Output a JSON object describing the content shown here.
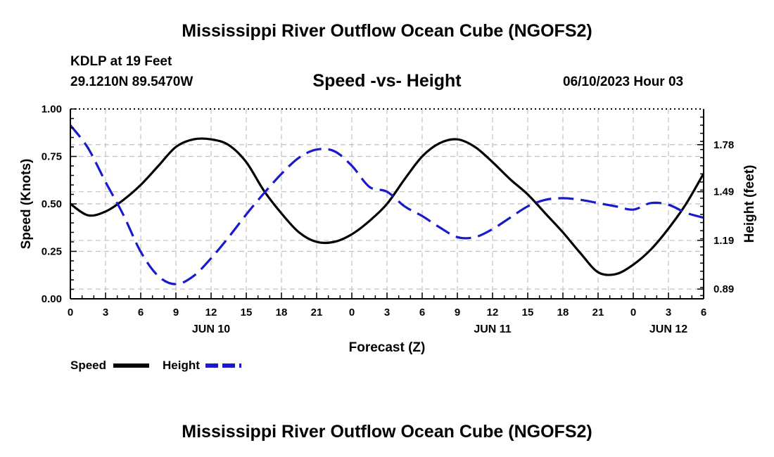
{
  "header": {
    "title": "Mississippi River Outflow Ocean Cube (NGOFS2)",
    "footer_title": "Mississippi River Outflow Ocean Cube (NGOFS2)",
    "station": "KDLP at 19 Feet",
    "coords": "29.1210N  89.5470W",
    "subtitle": "Speed -vs- Height",
    "run": "06/10/2023 Hour 03"
  },
  "colors": {
    "speed": "#000000",
    "height": "#1a1acc",
    "grid": "#c0c0c0"
  },
  "legend": {
    "speed_label": "Speed",
    "height_label": "Height"
  },
  "chart_data": {
    "type": "line",
    "title": "Speed -vs- Height",
    "xlabel": "Forecast (Z)",
    "ylabel": "Speed (Knots)",
    "y2label": "Height (feet)",
    "xlim": [
      0,
      54
    ],
    "ylim": [
      0,
      1.0
    ],
    "y2lim": [
      0.83,
      2.0
    ],
    "x_ticks": [
      0,
      3,
      6,
      9,
      12,
      15,
      18,
      21,
      24,
      27,
      30,
      33,
      36,
      39,
      42,
      45,
      48,
      51,
      54
    ],
    "x_tick_labels": [
      "0",
      "3",
      "6",
      "9",
      "12",
      "15",
      "18",
      "21",
      "0",
      "3",
      "6",
      "9",
      "12",
      "15",
      "18",
      "21",
      "0",
      "3",
      "6"
    ],
    "date_labels": [
      {
        "x": 12,
        "text": "JUN 10"
      },
      {
        "x": 36,
        "text": "JUN 11"
      },
      {
        "x": 51,
        "text": "JUN 12"
      }
    ],
    "y_ticks": [
      0.0,
      0.25,
      0.5,
      0.75,
      1.0
    ],
    "y_tick_labels": [
      "0.00",
      "0.25",
      "0.50",
      "0.75",
      "1.00"
    ],
    "y2_ticks": [
      0.89,
      1.19,
      1.49,
      1.78
    ],
    "y2_tick_labels": [
      "0.89",
      "1.19",
      "1.49",
      "1.78"
    ],
    "grid": true,
    "series": [
      {
        "name": "Speed",
        "axis": "left",
        "style": "solid",
        "x": [
          0,
          1.5,
          3,
          4.5,
          6,
          7.5,
          9,
          10.5,
          12,
          13.5,
          15,
          16.5,
          18,
          19.5,
          21,
          22.5,
          24,
          25.5,
          27,
          28.5,
          30,
          31.5,
          33,
          34.5,
          36,
          37.5,
          39,
          40.5,
          42,
          43.5,
          45,
          46.5,
          48,
          49.5,
          51,
          52.5,
          54
        ],
        "values": [
          0.5,
          0.44,
          0.46,
          0.52,
          0.6,
          0.7,
          0.8,
          0.84,
          0.84,
          0.81,
          0.72,
          0.57,
          0.45,
          0.35,
          0.3,
          0.3,
          0.34,
          0.41,
          0.5,
          0.63,
          0.75,
          0.82,
          0.84,
          0.8,
          0.72,
          0.63,
          0.55,
          0.45,
          0.35,
          0.24,
          0.14,
          0.13,
          0.18,
          0.26,
          0.37,
          0.5,
          0.66
        ]
      },
      {
        "name": "Height",
        "axis": "right",
        "style": "dashed",
        "x": [
          0,
          1.5,
          3,
          4.5,
          6,
          7.5,
          9,
          10.5,
          12,
          13.5,
          15,
          16.5,
          18,
          19.5,
          21,
          22.5,
          24,
          25.5,
          27,
          28.5,
          30,
          31.5,
          33,
          34.5,
          36,
          37.5,
          39,
          40.5,
          42,
          43.5,
          45,
          46.5,
          48,
          49.5,
          51,
          52.5,
          54
        ],
        "values": [
          1.9,
          1.76,
          1.55,
          1.35,
          1.12,
          0.97,
          0.92,
          0.97,
          1.08,
          1.21,
          1.35,
          1.48,
          1.6,
          1.7,
          1.75,
          1.74,
          1.65,
          1.52,
          1.49,
          1.4,
          1.34,
          1.27,
          1.21,
          1.21,
          1.26,
          1.33,
          1.4,
          1.44,
          1.45,
          1.44,
          1.42,
          1.4,
          1.38,
          1.42,
          1.41,
          1.36,
          1.33
        ]
      }
    ]
  }
}
